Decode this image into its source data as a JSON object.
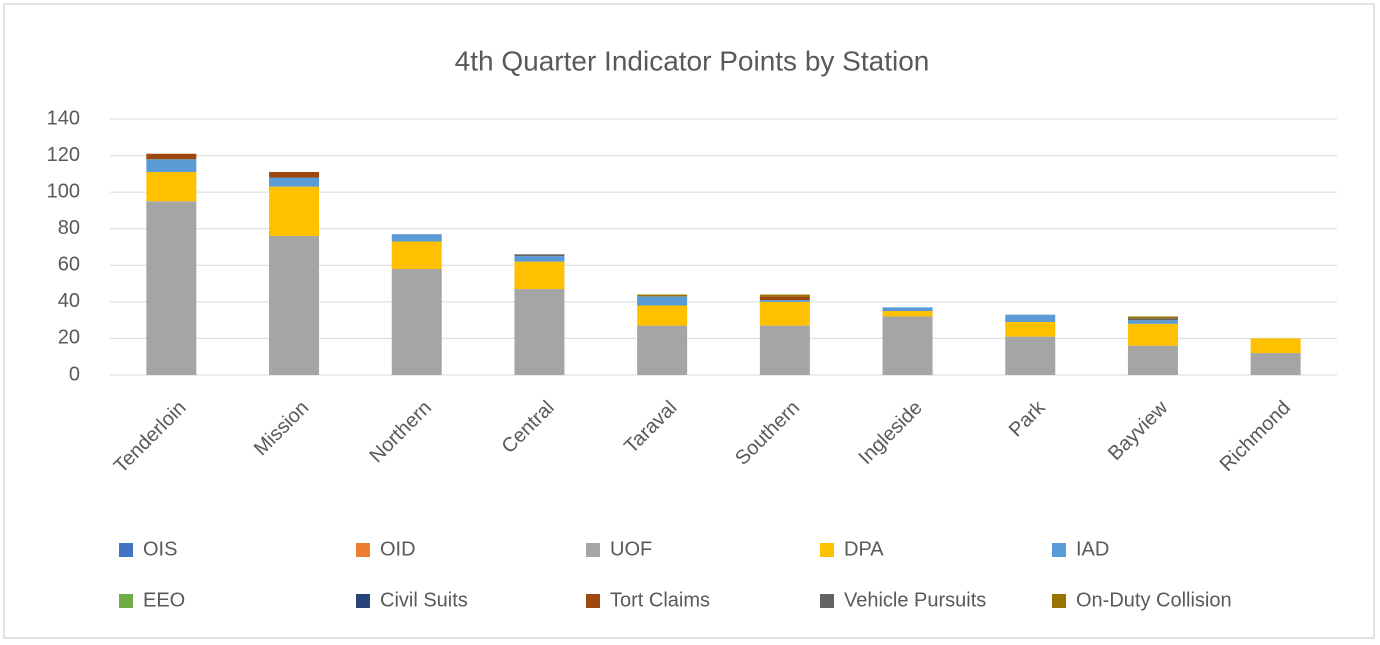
{
  "chart_data": {
    "type": "stacked_bar",
    "title": "4th Quarter Indicator Points by Station",
    "categories": [
      "Tenderloin",
      "Mission",
      "Northern",
      "Central",
      "Taraval",
      "Southern",
      "Ingleside",
      "Park",
      "Bayview",
      "Richmond"
    ],
    "series": [
      {
        "name": "OIS",
        "color": "#4472c4",
        "values": [
          0,
          0,
          0,
          0,
          0,
          0,
          0,
          0,
          0,
          0
        ]
      },
      {
        "name": "OID",
        "color": "#ed7d31",
        "values": [
          0,
          0,
          0,
          0,
          0,
          0,
          0,
          0,
          0,
          0
        ]
      },
      {
        "name": "UOF",
        "color": "#a5a5a5",
        "values": [
          95,
          76,
          58,
          47,
          27,
          27,
          32,
          21,
          16,
          12
        ]
      },
      {
        "name": "DPA",
        "color": "#ffc000",
        "values": [
          16,
          27,
          15,
          15,
          11,
          13,
          3,
          8,
          12,
          8
        ]
      },
      {
        "name": "IAD",
        "color": "#5b9bd5",
        "values": [
          7,
          5,
          4,
          3,
          5,
          1,
          2,
          4,
          2,
          0
        ]
      },
      {
        "name": "EEO",
        "color": "#70ad47",
        "values": [
          0,
          0,
          0,
          0,
          0,
          0,
          0,
          0,
          0,
          0
        ]
      },
      {
        "name": "Civil Suits",
        "color": "#264478",
        "values": [
          0,
          0,
          0,
          0,
          0,
          0,
          0,
          0,
          0,
          0
        ]
      },
      {
        "name": "Tort Claims",
        "color": "#9e480e",
        "values": [
          3,
          3,
          0,
          0,
          0,
          2,
          0,
          0,
          0,
          0
        ]
      },
      {
        "name": "Vehicle Pursuits",
        "color": "#636363",
        "values": [
          0,
          0,
          0,
          1,
          0,
          0,
          0,
          0,
          1,
          0
        ]
      },
      {
        "name": "On-Duty Collision",
        "color": "#997300",
        "values": [
          0,
          0,
          0,
          0,
          1,
          1,
          0,
          0,
          1,
          0
        ]
      }
    ],
    "ylim": [
      0,
      140
    ],
    "yticks": [
      0,
      20,
      40,
      60,
      80,
      100,
      120,
      140
    ],
    "grid": true,
    "legend": "bottom"
  }
}
